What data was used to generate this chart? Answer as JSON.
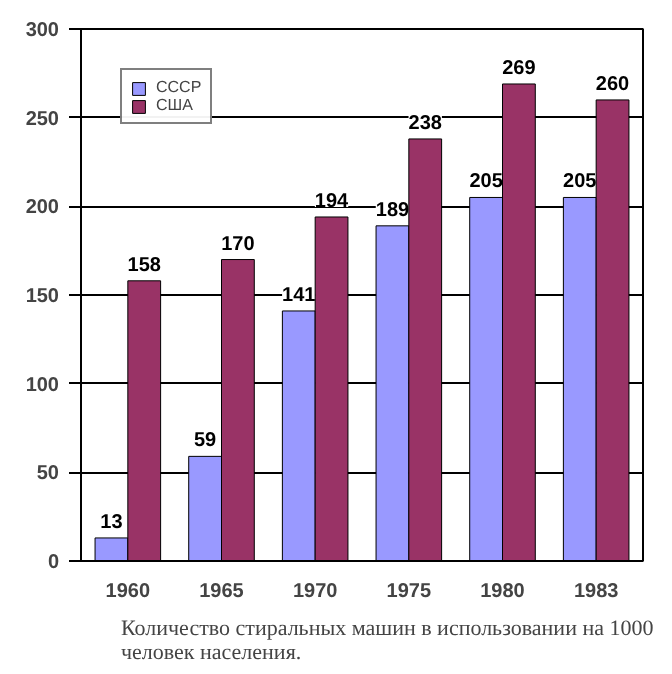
{
  "chart_data": {
    "type": "bar",
    "categories": [
      "1960",
      "1965",
      "1970",
      "1975",
      "1980",
      "1983"
    ],
    "series": [
      {
        "name": "СССР",
        "color": "#9999ff",
        "values": [
          13,
          59,
          141,
          189,
          205,
          205
        ]
      },
      {
        "name": "США",
        "color": "#993366",
        "values": [
          158,
          170,
          194,
          238,
          269,
          260
        ]
      }
    ],
    "ylim": [
      0,
      300
    ],
    "yticks": [
      0,
      50,
      100,
      150,
      200,
      250,
      300
    ],
    "grid": "y",
    "legend": "top left",
    "data_labels": true,
    "annotations": [
      "Количество стиральных машин в использовании на 1000 человек населения."
    ]
  }
}
